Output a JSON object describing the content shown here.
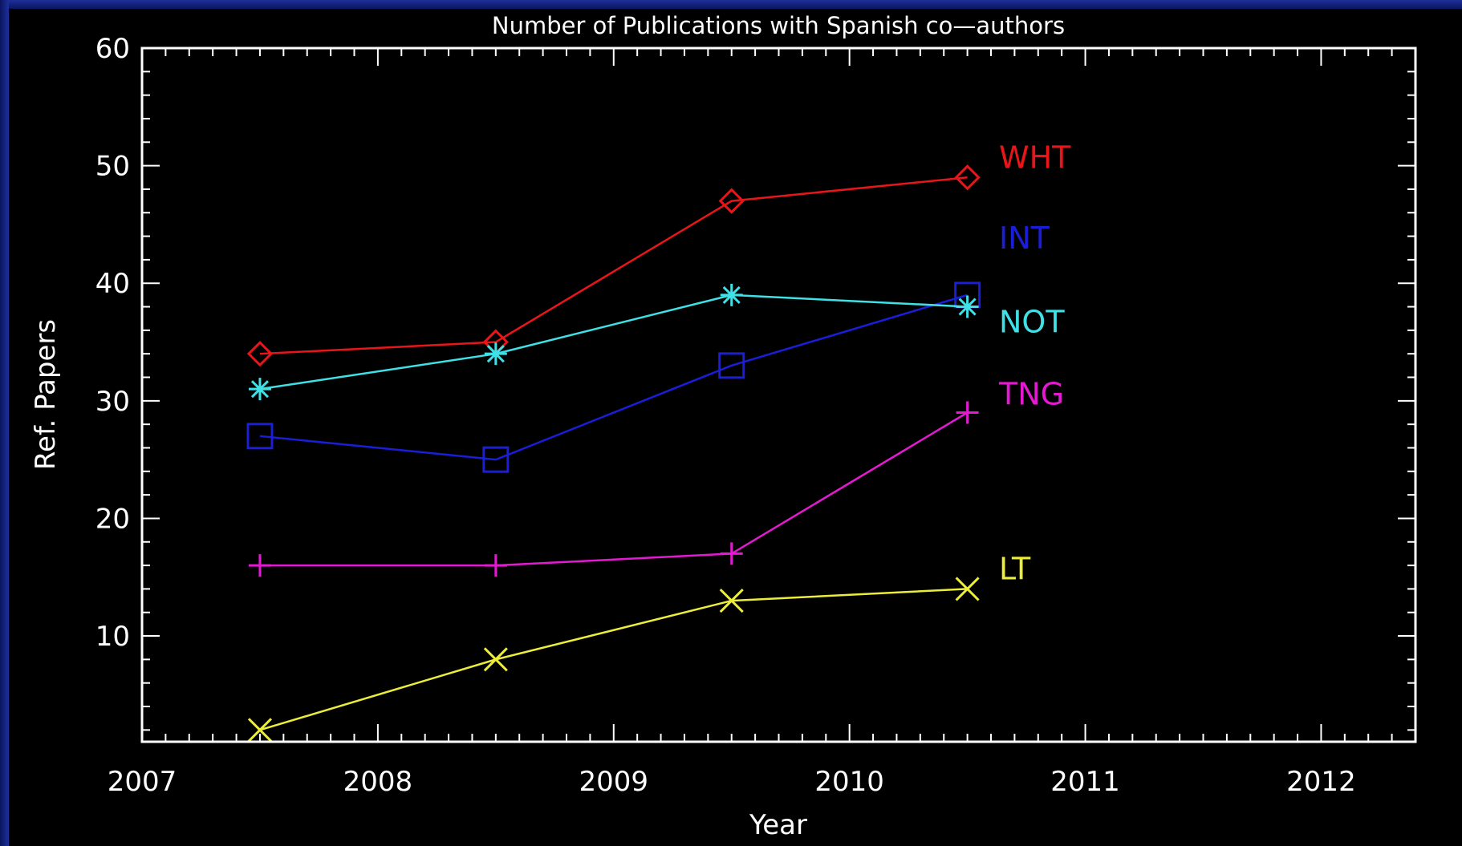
{
  "chart_data": {
    "type": "line",
    "title": "Number of Publications with Spanish co—authors",
    "xlabel": "Year",
    "ylabel": "Ref. Papers",
    "xlim": [
      2007,
      2012.4
    ],
    "ylim": [
      1,
      60
    ],
    "xticks": [
      2007,
      2008,
      2009,
      2010,
      2011,
      2012
    ],
    "yticks": [
      10,
      20,
      30,
      40,
      50,
      60
    ],
    "grid": false,
    "legend": "direct labels at right end of each line",
    "x": [
      2007.5,
      2008.5,
      2009.5,
      2010.5
    ],
    "series": [
      {
        "name": "WHT",
        "color": "#e8161b",
        "marker": "diamond",
        "values": [
          34,
          35,
          47,
          49
        ]
      },
      {
        "name": "INT",
        "color": "#1a1ed8",
        "marker": "square",
        "values": [
          27,
          25,
          33,
          39
        ]
      },
      {
        "name": "NOT",
        "color": "#3fe0e6",
        "marker": "asterisk",
        "values": [
          31,
          34,
          39,
          38
        ]
      },
      {
        "name": "TNG",
        "color": "#e31ad2",
        "marker": "plus",
        "values": [
          16,
          16,
          17,
          29
        ]
      },
      {
        "name": "LT",
        "color": "#ecec3a",
        "marker": "cross",
        "values": [
          2,
          8,
          13,
          14
        ]
      }
    ]
  }
}
